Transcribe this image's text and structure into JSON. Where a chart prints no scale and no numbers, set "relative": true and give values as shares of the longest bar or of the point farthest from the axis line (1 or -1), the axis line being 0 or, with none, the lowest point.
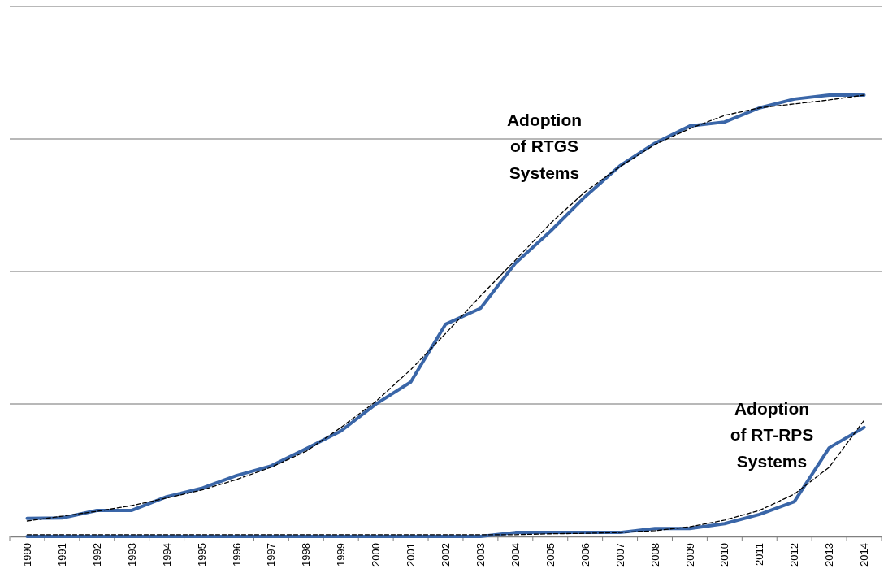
{
  "chart_data": {
    "type": "line",
    "relative": true,
    "grid": true,
    "line_style": "solid",
    "categories": [
      "1990",
      "1991",
      "1992",
      "1993",
      "1994",
      "1995",
      "1996",
      "1997",
      "1998",
      "1999",
      "2000",
      "2001",
      "2002",
      "2003",
      "2004",
      "2005",
      "2006",
      "2007",
      "2008",
      "2009",
      "2010",
      "2011",
      "2012",
      "2013",
      "2014"
    ],
    "series": [
      {
        "color": "#3a66a8",
        "values": [
          0.041,
          0.042,
          0.059,
          0.059,
          0.09,
          0.109,
          0.138,
          0.16,
          0.199,
          0.239,
          0.3,
          0.35,
          0.481,
          0.517,
          0.619,
          0.691,
          0.77,
          0.84,
          0.891,
          0.93,
          0.939,
          0.971,
          0.991,
          1,
          1
        ]
      },
      {
        "color": "#3a66a8",
        "values": [
          0,
          0,
          0,
          0,
          0,
          0,
          0,
          0,
          0,
          0,
          0,
          0,
          0,
          0,
          0.009,
          0.009,
          0.009,
          0.009,
          0.018,
          0.018,
          0.029,
          0.05,
          0.079,
          0.201,
          0.247
        ]
      },
      {
        "color": "#000000",
        "line_style": "dashed",
        "values": [
          0.035,
          0.046,
          0.057,
          0.07,
          0.087,
          0.105,
          0.129,
          0.157,
          0.193,
          0.247,
          0.306,
          0.378,
          0.46,
          0.545,
          0.626,
          0.709,
          0.781,
          0.838,
          0.888,
          0.924,
          0.954,
          0.971,
          0.98,
          0.989,
          1
        ]
      },
      {
        "color": "#000000",
        "line_style": "dashed",
        "values": [
          0.004,
          0.004,
          0.004,
          0.004,
          0.004,
          0.004,
          0.004,
          0.004,
          0.004,
          0.004,
          0.004,
          0.004,
          0.004,
          0.004,
          0.004,
          0.006,
          0.007,
          0.009,
          0.013,
          0.022,
          0.037,
          0.059,
          0.096,
          0.157,
          0.263
        ]
      }
    ],
    "annotations": [
      "Adoption\nof RTGS\nSystems",
      "Adoption\nof RT-RPS\nSystems"
    ]
  }
}
